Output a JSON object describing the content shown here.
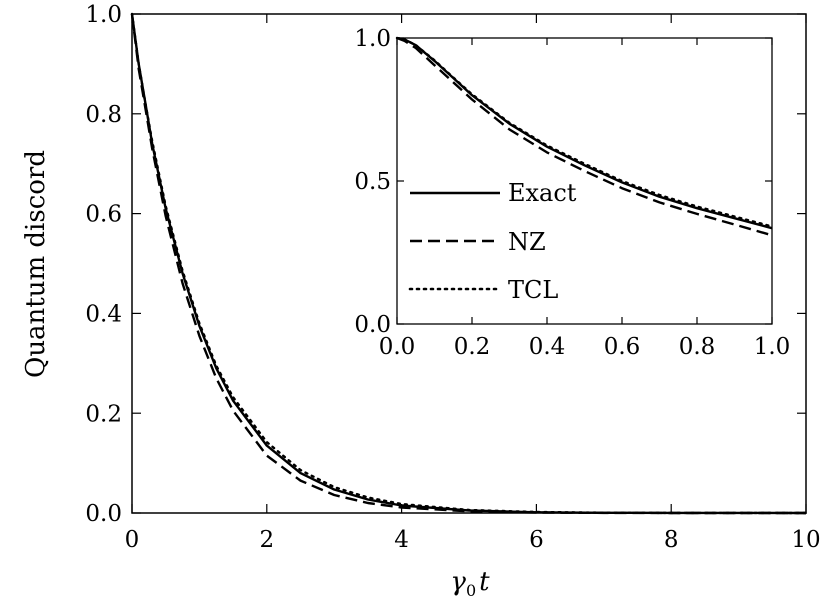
{
  "chart_data": [
    {
      "name": "main",
      "type": "line",
      "title": "",
      "xlabel_symbol": "γ",
      "xlabel_subscript": "0",
      "xlabel_var": "t",
      "ylabel": "Quantum discord",
      "xlim": [
        0,
        10
      ],
      "ylim": [
        0,
        1
      ],
      "xticks": [
        0,
        2,
        4,
        6,
        8,
        10
      ],
      "xtick_labels": [
        "0",
        "2",
        "4",
        "6",
        "8",
        "10"
      ],
      "yticks": [
        0,
        0.2,
        0.4,
        0.6,
        0.8,
        1.0
      ],
      "ytick_labels": [
        "0.0",
        "0.2",
        "0.4",
        "0.6",
        "0.8",
        "1.0"
      ],
      "grid": false,
      "series": [
        {
          "name": "Exact",
          "style": "solid",
          "x": [
            0,
            0.1,
            0.2,
            0.3,
            0.5,
            0.75,
            1.0,
            1.25,
            1.5,
            2.0,
            2.5,
            3.0,
            3.5,
            4.0,
            5.0,
            6.0,
            7.0,
            8.0,
            10.0
          ],
          "y": [
            1.0,
            0.9,
            0.82,
            0.74,
            0.61,
            0.48,
            0.375,
            0.29,
            0.225,
            0.135,
            0.08,
            0.047,
            0.027,
            0.015,
            0.005,
            0.0015,
            0.0005,
            0.0002,
            0.0
          ]
        },
        {
          "name": "NZ",
          "style": "dashed",
          "x": [
            0,
            0.1,
            0.2,
            0.3,
            0.5,
            0.75,
            1.0,
            1.25,
            1.5,
            2.0,
            2.5,
            3.0,
            3.5,
            4.0,
            5.0,
            6.0,
            7.0,
            8.0,
            10.0
          ],
          "y": [
            1.0,
            0.89,
            0.81,
            0.73,
            0.595,
            0.46,
            0.355,
            0.27,
            0.205,
            0.115,
            0.065,
            0.036,
            0.02,
            0.011,
            0.0035,
            0.001,
            0.0003,
            0.0001,
            0.0
          ]
        },
        {
          "name": "TCL",
          "style": "dotted",
          "x": [
            0,
            0.1,
            0.2,
            0.3,
            0.5,
            0.75,
            1.0,
            1.25,
            1.5,
            2.0,
            2.5,
            3.0,
            3.5,
            4.0,
            5.0,
            6.0,
            7.0,
            8.0,
            10.0
          ],
          "y": [
            1.0,
            0.9,
            0.82,
            0.745,
            0.615,
            0.485,
            0.38,
            0.295,
            0.232,
            0.142,
            0.086,
            0.052,
            0.031,
            0.018,
            0.006,
            0.002,
            0.0007,
            0.0002,
            0.0
          ]
        }
      ]
    },
    {
      "name": "inset",
      "type": "line",
      "xlim": [
        0,
        1
      ],
      "ylim": [
        0,
        1
      ],
      "xticks": [
        0,
        0.2,
        0.4,
        0.6,
        0.8,
        1.0
      ],
      "xtick_labels": [
        "0.0",
        "0.2",
        "0.4",
        "0.6",
        "0.8",
        "1.0"
      ],
      "yticks": [
        0,
        0.5,
        1.0
      ],
      "ytick_labels": [
        "0.0",
        "0.5",
        "1.0"
      ],
      "legend": {
        "position": "center-left",
        "entries": [
          "Exact",
          "NZ",
          "TCL"
        ]
      },
      "series": [
        {
          "name": "Exact",
          "style": "solid",
          "x": [
            0,
            0.02,
            0.05,
            0.1,
            0.15,
            0.2,
            0.3,
            0.4,
            0.5,
            0.6,
            0.7,
            0.8,
            0.9,
            1.0
          ],
          "y": [
            1.0,
            0.995,
            0.975,
            0.92,
            0.86,
            0.8,
            0.7,
            0.62,
            0.555,
            0.495,
            0.445,
            0.405,
            0.37,
            0.335
          ]
        },
        {
          "name": "NZ",
          "style": "dashed",
          "x": [
            0,
            0.02,
            0.05,
            0.1,
            0.15,
            0.2,
            0.3,
            0.4,
            0.5,
            0.6,
            0.7,
            0.8,
            0.9,
            1.0
          ],
          "y": [
            1.0,
            0.99,
            0.965,
            0.905,
            0.845,
            0.785,
            0.68,
            0.6,
            0.535,
            0.475,
            0.425,
            0.385,
            0.348,
            0.31
          ]
        },
        {
          "name": "TCL",
          "style": "dotted",
          "x": [
            0,
            0.02,
            0.05,
            0.1,
            0.15,
            0.2,
            0.3,
            0.4,
            0.5,
            0.6,
            0.7,
            0.8,
            0.9,
            1.0
          ],
          "y": [
            1.0,
            0.995,
            0.975,
            0.922,
            0.862,
            0.803,
            0.703,
            0.624,
            0.56,
            0.5,
            0.451,
            0.411,
            0.376,
            0.341
          ]
        }
      ]
    }
  ]
}
